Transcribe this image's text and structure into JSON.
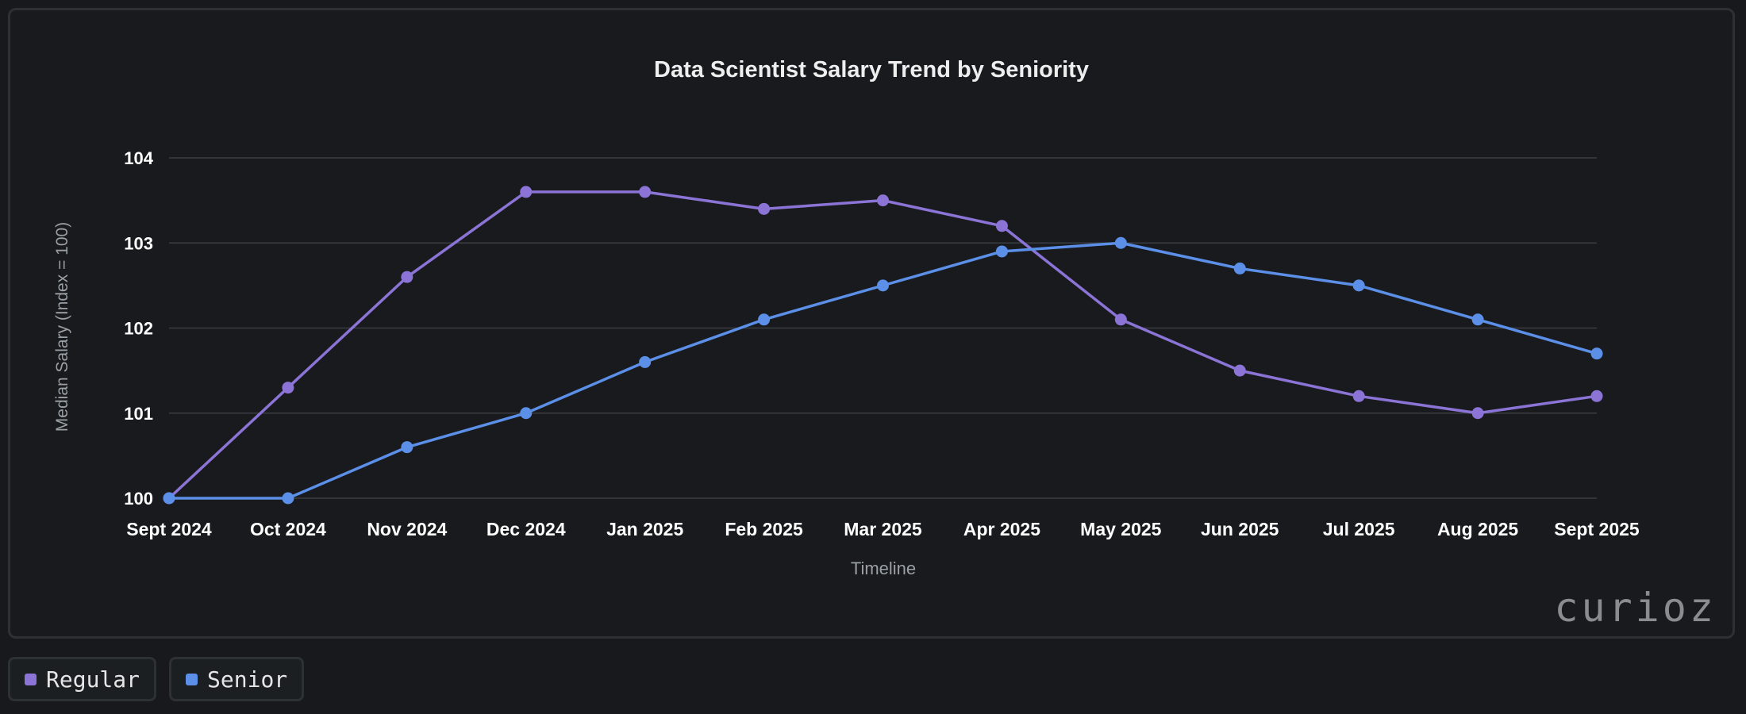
{
  "chart_data": {
    "type": "line",
    "title": "Data Scientist Salary Trend by Seniority",
    "xlabel": "Timeline",
    "ylabel": "Median Salary (Index = 100)",
    "ylim": [
      100,
      104
    ],
    "yticks": [
      100,
      101,
      102,
      103,
      104
    ],
    "grid": true,
    "categories": [
      "Sept 2024",
      "Oct 2024",
      "Nov 2024",
      "Dec 2024",
      "Jan 2025",
      "Feb 2025",
      "Mar 2025",
      "Apr 2025",
      "May 2025",
      "Jun 2025",
      "Jul 2025",
      "Aug 2025",
      "Sept 2025"
    ],
    "series": [
      {
        "name": "Regular",
        "color": "#8b74d6",
        "values": [
          100,
          101.3,
          102.6,
          103.6,
          103.6,
          103.4,
          103.5,
          103.2,
          102.1,
          101.5,
          101.2,
          101.0,
          101.2
        ]
      },
      {
        "name": "Senior",
        "color": "#5b8fe8",
        "values": [
          100,
          100,
          100.6,
          101.0,
          101.6,
          102.1,
          102.5,
          102.9,
          103.0,
          102.7,
          102.5,
          102.1,
          101.7
        ]
      }
    ],
    "legend_position": "bottom-left"
  },
  "watermark": "curioz",
  "legend": [
    {
      "label": "Regular",
      "color": "#8b74d6"
    },
    {
      "label": "Senior",
      "color": "#5b8fe8"
    }
  ]
}
